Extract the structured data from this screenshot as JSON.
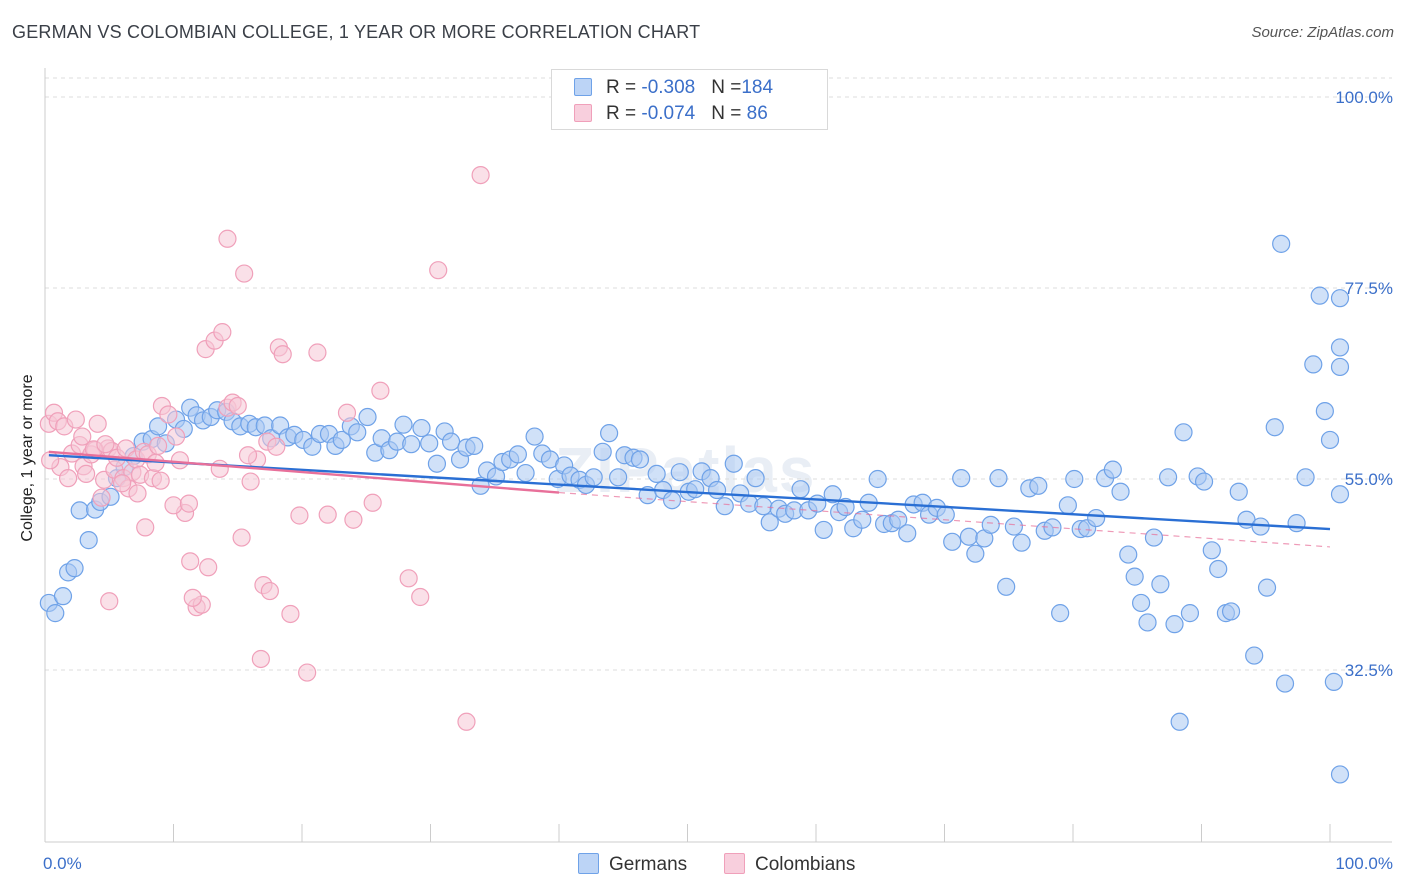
{
  "title": "GERMAN VS COLOMBIAN COLLEGE, 1 YEAR OR MORE CORRELATION CHART",
  "source": "Source: ZipAtlas.com",
  "chart_data": {
    "type": "scatter",
    "title": "GERMAN VS COLOMBIAN COLLEGE, 1 YEAR OR MORE CORRELATION CHART",
    "ylabel": "College, 1 year or more",
    "xlabel": "",
    "x_tick_labels": [
      "0.0%",
      "100.0%"
    ],
    "y_tick_labels": [
      "32.5%",
      "55.0%",
      "77.5%",
      "100.0%"
    ],
    "y_ticks": [
      32.5,
      55.0,
      77.5,
      100.0
    ],
    "xlim": [
      0,
      100
    ],
    "ylim": [
      12,
      100
    ],
    "grid": "horizontal dashed",
    "legend_placement": "bottom-center",
    "watermark": "ZIPatlas",
    "stats": [
      {
        "name": "Germans",
        "R_label": "R = ",
        "R": "-0.308",
        "N_label": "N = ",
        "N": "184"
      },
      {
        "name": "Colombians",
        "R_label": "R = ",
        "R": "-0.074",
        "N_label": "N = ",
        "N": " 86"
      }
    ],
    "series": [
      {
        "name": "Germans",
        "color": "#6fa2e8",
        "fill": "#a9c8f2",
        "line_color": "#2a6fd4",
        "trend": {
          "x": [
            0.3,
            100
          ],
          "y": [
            57.8,
            49.1
          ],
          "style": "solid"
        },
        "points": [
          [
            0.3,
            40.4
          ],
          [
            0.8,
            39.2
          ],
          [
            1.4,
            41.2
          ],
          [
            1.8,
            44.0
          ],
          [
            2.3,
            44.5
          ],
          [
            2.7,
            51.3
          ],
          [
            3.4,
            47.8
          ],
          [
            3.9,
            51.4
          ],
          [
            4.3,
            52.3
          ],
          [
            5.1,
            52.9
          ],
          [
            5.6,
            55.1
          ],
          [
            6.2,
            56.4
          ],
          [
            6.9,
            57.7
          ],
          [
            7.6,
            59.4
          ],
          [
            8.3,
            59.7
          ],
          [
            8.8,
            61.2
          ],
          [
            9.4,
            59.2
          ],
          [
            10.2,
            62.0
          ],
          [
            10.8,
            60.9
          ],
          [
            11.3,
            63.4
          ],
          [
            11.8,
            62.5
          ],
          [
            12.3,
            61.9
          ],
          [
            12.9,
            62.3
          ],
          [
            13.4,
            63.1
          ],
          [
            14.1,
            62.9
          ],
          [
            14.6,
            61.8
          ],
          [
            15.2,
            61.2
          ],
          [
            15.9,
            61.5
          ],
          [
            16.4,
            61.1
          ],
          [
            17.1,
            61.3
          ],
          [
            17.6,
            59.8
          ],
          [
            18.3,
            61.3
          ],
          [
            18.9,
            59.9
          ],
          [
            19.4,
            60.2
          ],
          [
            20.1,
            59.6
          ],
          [
            20.8,
            58.8
          ],
          [
            21.4,
            60.3
          ],
          [
            22.1,
            60.3
          ],
          [
            22.6,
            58.9
          ],
          [
            23.1,
            59.6
          ],
          [
            23.8,
            61.2
          ],
          [
            24.3,
            60.5
          ],
          [
            25.1,
            62.3
          ],
          [
            25.7,
            58.1
          ],
          [
            26.2,
            59.8
          ],
          [
            26.8,
            58.4
          ],
          [
            27.4,
            59.4
          ],
          [
            27.9,
            61.4
          ],
          [
            28.5,
            59.1
          ],
          [
            29.3,
            61.0
          ],
          [
            29.9,
            59.2
          ],
          [
            30.5,
            56.8
          ],
          [
            31.1,
            60.6
          ],
          [
            31.6,
            59.4
          ],
          [
            32.3,
            57.3
          ],
          [
            32.8,
            58.7
          ],
          [
            33.4,
            58.9
          ],
          [
            33.9,
            54.2
          ],
          [
            34.4,
            56.0
          ],
          [
            35.1,
            55.3
          ],
          [
            35.6,
            57.0
          ],
          [
            36.2,
            57.3
          ],
          [
            36.8,
            57.9
          ],
          [
            37.4,
            55.7
          ],
          [
            38.1,
            60.0
          ],
          [
            38.7,
            58.0
          ],
          [
            39.3,
            57.3
          ],
          [
            39.9,
            55.0
          ],
          [
            40.4,
            56.6
          ],
          [
            40.9,
            55.4
          ],
          [
            41.6,
            54.9
          ],
          [
            42.1,
            54.3
          ],
          [
            42.7,
            55.2
          ],
          [
            43.4,
            58.2
          ],
          [
            43.9,
            60.4
          ],
          [
            44.6,
            55.2
          ],
          [
            45.1,
            57.8
          ],
          [
            45.8,
            57.5
          ],
          [
            46.3,
            57.3
          ],
          [
            46.9,
            53.1
          ],
          [
            47.6,
            55.6
          ],
          [
            48.1,
            53.7
          ],
          [
            48.8,
            52.5
          ],
          [
            49.4,
            55.8
          ],
          [
            50.1,
            53.5
          ],
          [
            50.6,
            53.8
          ],
          [
            51.1,
            55.9
          ],
          [
            51.8,
            55.1
          ],
          [
            52.3,
            53.7
          ],
          [
            52.9,
            51.8
          ],
          [
            53.6,
            56.8
          ],
          [
            54.1,
            53.3
          ],
          [
            54.8,
            52.1
          ],
          [
            55.3,
            55.1
          ],
          [
            55.9,
            51.8
          ],
          [
            56.4,
            49.9
          ],
          [
            57.1,
            51.5
          ],
          [
            57.6,
            50.9
          ],
          [
            58.3,
            51.3
          ],
          [
            58.8,
            53.8
          ],
          [
            59.4,
            51.3
          ],
          [
            60.1,
            52.1
          ],
          [
            60.6,
            49.0
          ],
          [
            61.3,
            53.2
          ],
          [
            61.8,
            51.1
          ],
          [
            62.3,
            51.7
          ],
          [
            62.9,
            49.2
          ],
          [
            63.6,
            50.2
          ],
          [
            64.1,
            52.2
          ],
          [
            64.8,
            55.0
          ],
          [
            65.3,
            49.7
          ],
          [
            65.9,
            49.8
          ],
          [
            66.4,
            50.2
          ],
          [
            67.1,
            48.6
          ],
          [
            67.6,
            52.0
          ],
          [
            68.3,
            52.2
          ],
          [
            68.8,
            50.8
          ],
          [
            69.4,
            51.6
          ],
          [
            70.1,
            50.8
          ],
          [
            70.6,
            47.6
          ],
          [
            71.3,
            55.1
          ],
          [
            71.9,
            48.2
          ],
          [
            72.4,
            46.2
          ],
          [
            73.1,
            48.0
          ],
          [
            73.6,
            49.6
          ],
          [
            74.2,
            55.1
          ],
          [
            74.8,
            42.3
          ],
          [
            75.4,
            49.4
          ],
          [
            76.0,
            47.5
          ],
          [
            76.6,
            53.9
          ],
          [
            77.3,
            54.2
          ],
          [
            77.8,
            48.9
          ],
          [
            78.4,
            49.3
          ],
          [
            79.0,
            39.2
          ],
          [
            79.6,
            51.9
          ],
          [
            80.1,
            55.0
          ],
          [
            80.6,
            49.1
          ],
          [
            81.1,
            49.2
          ],
          [
            81.8,
            50.4
          ],
          [
            82.5,
            55.1
          ],
          [
            83.1,
            56.1
          ],
          [
            83.7,
            53.5
          ],
          [
            84.3,
            46.1
          ],
          [
            84.8,
            43.5
          ],
          [
            85.3,
            40.4
          ],
          [
            85.8,
            38.1
          ],
          [
            86.3,
            48.1
          ],
          [
            86.8,
            42.6
          ],
          [
            87.4,
            55.2
          ],
          [
            87.9,
            37.9
          ],
          [
            88.6,
            60.5
          ],
          [
            89.1,
            39.2
          ],
          [
            89.7,
            55.3
          ],
          [
            90.2,
            54.7
          ],
          [
            90.8,
            46.6
          ],
          [
            91.3,
            44.4
          ],
          [
            91.9,
            39.2
          ],
          [
            92.3,
            39.4
          ],
          [
            92.9,
            53.5
          ],
          [
            93.5,
            50.2
          ],
          [
            94.1,
            34.2
          ],
          [
            94.6,
            49.4
          ],
          [
            95.1,
            42.2
          ],
          [
            95.7,
            61.1
          ],
          [
            96.2,
            82.7
          ],
          [
            96.5,
            30.9
          ],
          [
            97.4,
            49.8
          ],
          [
            98.1,
            55.2
          ],
          [
            98.7,
            68.5
          ],
          [
            99.2,
            76.6
          ],
          [
            99.6,
            63.0
          ],
          [
            100.0,
            59.6
          ],
          [
            100.3,
            31.1
          ],
          [
            100.9,
            76.3
          ],
          [
            101.6,
            53.2
          ],
          [
            103.8,
            68.2
          ],
          [
            104.8,
            70.5
          ],
          [
            101.4,
            20.2
          ],
          [
            88.3,
            26.4
          ]
        ]
      },
      {
        "name": "Colombians",
        "color": "#f0a0ba",
        "fill": "#f6c6d6",
        "line_color": "#e8709a",
        "trend": {
          "x": [
            0.3,
            40.0
          ],
          "y": [
            58.2,
            53.4
          ],
          "style": "solid"
        },
        "trend_ext": {
          "x": [
            40.0,
            100
          ],
          "y": [
            53.4,
            47.0
          ],
          "style": "dashed"
        },
        "points": [
          [
            0.3,
            61.5
          ],
          [
            0.7,
            62.8
          ],
          [
            1.0,
            61.8
          ],
          [
            1.2,
            56.4
          ],
          [
            1.5,
            61.2
          ],
          [
            1.8,
            55.1
          ],
          [
            2.1,
            58.0
          ],
          [
            2.4,
            62.0
          ],
          [
            2.7,
            59.0
          ],
          [
            3.0,
            56.5
          ],
          [
            3.2,
            55.6
          ],
          [
            3.6,
            57.9
          ],
          [
            3.9,
            58.4
          ],
          [
            4.1,
            61.5
          ],
          [
            4.4,
            52.8
          ],
          [
            4.6,
            54.9
          ],
          [
            4.9,
            58.6
          ],
          [
            5.2,
            58.3
          ],
          [
            5.4,
            56.1
          ],
          [
            5.6,
            57.5
          ],
          [
            6.1,
            55.1
          ],
          [
            6.3,
            58.6
          ],
          [
            6.5,
            53.9
          ],
          [
            6.8,
            55.8
          ],
          [
            7.1,
            57.3
          ],
          [
            7.4,
            55.5
          ],
          [
            7.7,
            58.2
          ],
          [
            8.0,
            57.9
          ],
          [
            8.4,
            55.1
          ],
          [
            8.8,
            58.9
          ],
          [
            9.1,
            63.6
          ],
          [
            9.6,
            62.6
          ],
          [
            10.2,
            60.0
          ],
          [
            10.5,
            57.2
          ],
          [
            10.9,
            51.0
          ],
          [
            11.3,
            45.3
          ],
          [
            11.8,
            39.9
          ],
          [
            12.2,
            40.2
          ],
          [
            12.5,
            70.3
          ],
          [
            13.2,
            71.3
          ],
          [
            13.8,
            72.3
          ],
          [
            14.2,
            63.4
          ],
          [
            14.6,
            64.0
          ],
          [
            15.0,
            63.6
          ],
          [
            15.3,
            48.1
          ],
          [
            16.0,
            54.7
          ],
          [
            16.5,
            57.3
          ],
          [
            17.0,
            42.5
          ],
          [
            17.5,
            41.8
          ],
          [
            18.2,
            70.5
          ],
          [
            18.5,
            69.7
          ],
          [
            19.1,
            39.1
          ],
          [
            19.8,
            50.7
          ],
          [
            20.4,
            32.2
          ],
          [
            21.2,
            69.9
          ],
          [
            22.0,
            50.8
          ],
          [
            23.5,
            62.8
          ],
          [
            24.0,
            50.2
          ],
          [
            25.5,
            52.2
          ],
          [
            26.1,
            65.4
          ],
          [
            28.3,
            43.3
          ],
          [
            29.2,
            41.1
          ],
          [
            30.6,
            79.6
          ],
          [
            32.8,
            26.4
          ],
          [
            33.9,
            90.8
          ],
          [
            7.8,
            49.3
          ],
          [
            10.0,
            51.9
          ],
          [
            11.5,
            41.0
          ],
          [
            12.7,
            44.6
          ],
          [
            14.2,
            83.3
          ],
          [
            15.5,
            79.2
          ],
          [
            17.3,
            59.4
          ],
          [
            18.0,
            58.8
          ],
          [
            3.8,
            58.5
          ],
          [
            4.7,
            59.1
          ],
          [
            6.0,
            54.5
          ],
          [
            5.0,
            40.6
          ],
          [
            16.8,
            33.8
          ],
          [
            11.2,
            52.1
          ],
          [
            9.0,
            54.8
          ],
          [
            7.2,
            53.3
          ],
          [
            8.6,
            56.9
          ],
          [
            13.6,
            56.2
          ],
          [
            15.8,
            57.8
          ],
          [
            0.4,
            57.2
          ],
          [
            2.9,
            60.0
          ]
        ]
      }
    ]
  },
  "legend": {
    "items": [
      {
        "label": "Germans",
        "color": "#a9c8f2",
        "border": "#6fa2e8"
      },
      {
        "label": "Colombians",
        "color": "#f6c6d6",
        "border": "#f0a0ba"
      }
    ]
  }
}
